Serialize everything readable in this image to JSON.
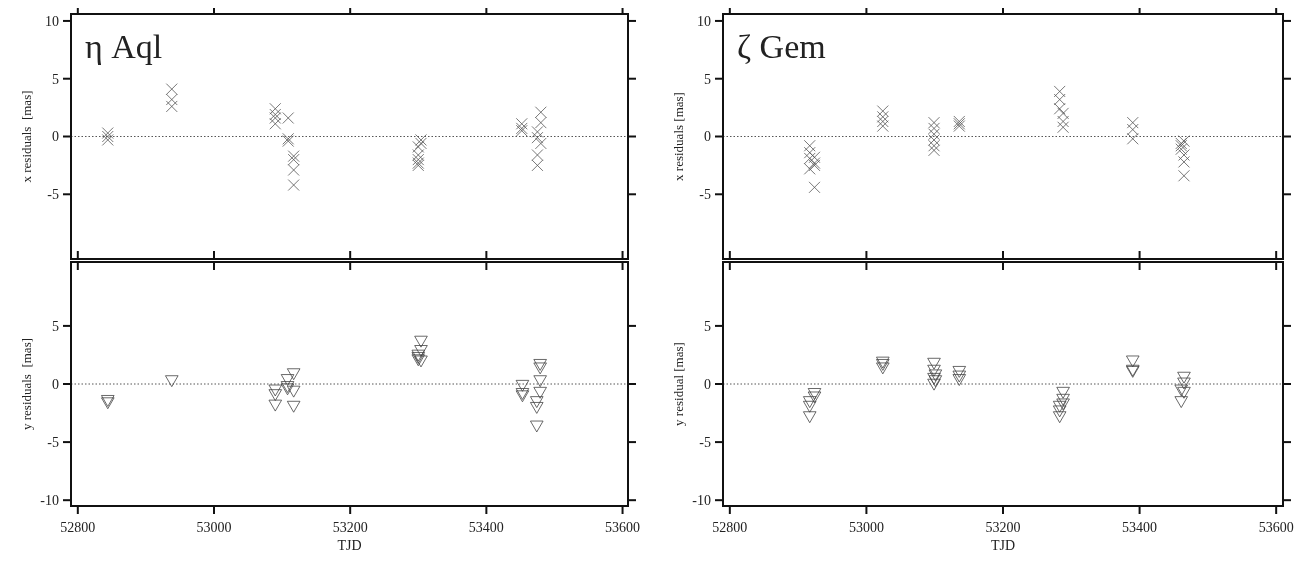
{
  "chart_data": [
    {
      "type": "scatter",
      "title": "η Aql",
      "ylabel": "x residuals  [mas]",
      "xlim": [
        52790,
        53608
      ],
      "xticks": [
        52800,
        53000,
        53200,
        53400,
        53600
      ],
      "ylim": [
        -10.6,
        10.6
      ],
      "yticks": [
        10,
        5,
        0,
        -5
      ],
      "tick_labels": "y",
      "marker": "cross",
      "grid": false,
      "ref_lines": [
        {
          "axis": "y",
          "value": 0,
          "line_style": "dotted",
          "color": "#555555"
        }
      ],
      "series": [
        {
          "color": "#555555",
          "x": [
            52844,
            52844,
            52844,
            52938,
            52938,
            52938,
            53090,
            53090,
            53090,
            53090,
            53109,
            53109,
            53109,
            53117,
            53117,
            53117,
            53117,
            53300,
            53300,
            53300,
            53300,
            53300,
            53304,
            53304,
            53452,
            53452,
            53452,
            53475,
            53475,
            53475,
            53475,
            53480,
            53480,
            53480
          ],
          "values": [
            0.3,
            -0.3,
            0.0,
            4.1,
            3.2,
            2.6,
            2.4,
            1.9,
            1.6,
            1.1,
            1.6,
            -0.2,
            -0.4,
            -1.7,
            -2.0,
            -2.9,
            -4.2,
            -0.9,
            -1.6,
            -2.0,
            -2.3,
            -2.5,
            -0.3,
            -0.6,
            1.1,
            0.7,
            0.5,
            0.4,
            -0.1,
            -1.6,
            -2.5,
            2.1,
            1.2,
            -0.6
          ]
        }
      ]
    },
    {
      "type": "scatter",
      "xlabel": "TJD",
      "ylabel": "y residuals  [mas]",
      "xlim": [
        52790,
        53608
      ],
      "xticks": [
        52800,
        53000,
        53200,
        53400,
        53600
      ],
      "ylim": [
        -10.5,
        10.5
      ],
      "yticks": [
        5,
        0,
        -5,
        -10
      ],
      "marker": "triangle",
      "grid": false,
      "ref_lines": [
        {
          "axis": "y",
          "value": 0,
          "line_style": "dotted",
          "color": "#555555"
        }
      ],
      "series": [
        {
          "color": "#444444",
          "x": [
            52844,
            52844,
            52938,
            53090,
            53090,
            53090,
            53108,
            53108,
            53108,
            53117,
            53117,
            53117,
            53300,
            53300,
            53300,
            53304,
            53304,
            53304,
            53453,
            53453,
            53453,
            53474,
            53474,
            53474,
            53479,
            53479,
            53479,
            53479
          ],
          "values": [
            -1.3,
            -1.5,
            0.4,
            -0.4,
            -0.8,
            -1.7,
            0.5,
            -0.1,
            -0.3,
            1.0,
            -0.5,
            -1.8,
            2.6,
            2.4,
            2.2,
            3.8,
            3.0,
            2.1,
            0.0,
            -0.7,
            -0.9,
            -1.4,
            -1.9,
            -3.5,
            1.8,
            1.5,
            0.4,
            -0.6
          ]
        }
      ]
    },
    {
      "type": "scatter",
      "title": "ζ Gem",
      "ylabel": "x residuals [mas]",
      "xlim": [
        52790,
        53610
      ],
      "xticks": [
        52800,
        53000,
        53200,
        53400,
        53600
      ],
      "ylim": [
        -10.6,
        10.6
      ],
      "yticks": [
        10,
        5,
        0,
        -5
      ],
      "tick_labels": "y",
      "marker": "cross",
      "grid": false,
      "ref_lines": [
        {
          "axis": "y",
          "value": 0,
          "line_style": "dotted",
          "color": "#555555"
        }
      ],
      "series": [
        {
          "color": "#555555",
          "x": [
            52917,
            52917,
            52917,
            52917,
            52924,
            52924,
            52924,
            52924,
            53024,
            53024,
            53024,
            53024,
            53099,
            53099,
            53099,
            53099,
            53099,
            53099,
            53136,
            53136,
            53136,
            53283,
            53283,
            53283,
            53288,
            53288,
            53288,
            53390,
            53390,
            53390,
            53461,
            53461,
            53461,
            53465,
            53465,
            53465,
            53465
          ],
          "values": [
            -0.8,
            -1.4,
            -1.9,
            -2.8,
            -1.8,
            -2.3,
            -2.5,
            -4.4,
            2.2,
            1.7,
            1.3,
            0.9,
            1.2,
            0.7,
            0.2,
            -0.3,
            -0.8,
            -1.2,
            1.3,
            1.1,
            0.9,
            3.9,
            3.2,
            2.4,
            2.0,
            1.3,
            0.8,
            1.2,
            0.6,
            -0.2,
            -0.6,
            -0.8,
            -1.1,
            -0.4,
            -1.6,
            -2.2,
            -3.4
          ]
        }
      ]
    },
    {
      "type": "scatter",
      "xlabel": "TJD",
      "ylabel": "y residual [mas]",
      "xlim": [
        52790,
        53610
      ],
      "xticks": [
        52800,
        53000,
        53200,
        53400,
        53600
      ],
      "ylim": [
        -10.5,
        10.5
      ],
      "yticks": [
        5,
        0,
        -5,
        -10
      ],
      "marker": "triangle",
      "grid": false,
      "ref_lines": [
        {
          "axis": "y",
          "value": 0,
          "line_style": "dotted",
          "color": "#555555"
        }
      ],
      "series": [
        {
          "color": "#444444",
          "x": [
            52917,
            52917,
            52917,
            52924,
            52924,
            53024,
            53024,
            53024,
            53099,
            53099,
            53099,
            53099,
            53101,
            53101,
            53136,
            53136,
            53136,
            53283,
            53283,
            53283,
            53288,
            53288,
            53288,
            53390,
            53390,
            53390,
            53461,
            53461,
            53465,
            53465,
            53465
          ],
          "values": [
            -1.4,
            -1.8,
            -2.7,
            -0.7,
            -1.0,
            2.0,
            1.8,
            1.5,
            1.9,
            1.3,
            0.6,
            0.1,
            0.9,
            0.4,
            1.2,
            0.8,
            0.5,
            -1.8,
            -2.2,
            -2.7,
            -0.6,
            -1.2,
            -1.6,
            2.1,
            1.3,
            1.2,
            -0.4,
            -1.4,
            0.7,
            0.2,
            -0.6
          ]
        }
      ]
    }
  ]
}
